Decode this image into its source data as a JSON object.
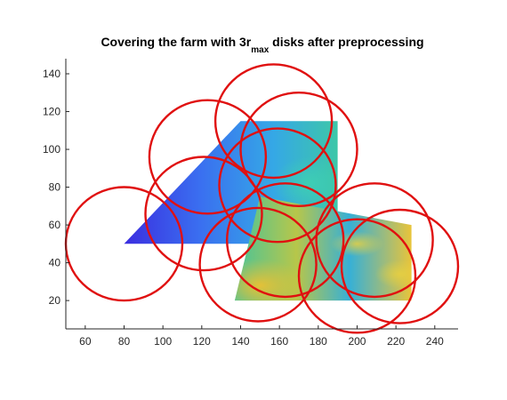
{
  "chart_data": {
    "type": "scatter",
    "title": {
      "prefix": "Covering the farm with 3r",
      "subscript": "max",
      "suffix": " disks after preprocessing"
    },
    "xlabel": "",
    "ylabel": "",
    "xlim": [
      50,
      252
    ],
    "ylim": [
      5,
      148
    ],
    "x_ticks": [
      60,
      80,
      100,
      120,
      140,
      160,
      180,
      200,
      220,
      240
    ],
    "y_ticks": [
      20,
      40,
      60,
      80,
      100,
      120,
      140
    ],
    "grid": false,
    "farm_regions": [
      {
        "name_hidden": true,
        "polygon": [
          [
            80,
            50
          ],
          [
            140,
            115
          ],
          [
            190,
            115
          ],
          [
            190,
            50
          ]
        ],
        "colormap": "cool"
      },
      {
        "name_hidden": true,
        "polygon": [
          [
            150,
            75
          ],
          [
            228,
            60
          ],
          [
            228,
            20
          ],
          [
            137,
            20
          ]
        ],
        "colormap": "warm"
      }
    ],
    "disks": [
      {
        "cx": 80,
        "cy": 50,
        "r": 30
      },
      {
        "cx": 123,
        "cy": 96,
        "r": 30
      },
      {
        "cx": 121,
        "cy": 66,
        "r": 30
      },
      {
        "cx": 157,
        "cy": 115,
        "r": 30
      },
      {
        "cx": 170,
        "cy": 100,
        "r": 30
      },
      {
        "cx": 159,
        "cy": 81,
        "r": 30
      },
      {
        "cx": 163,
        "cy": 52,
        "r": 30
      },
      {
        "cx": 149,
        "cy": 39,
        "r": 30
      },
      {
        "cx": 200,
        "cy": 33,
        "r": 30
      },
      {
        "cx": 209,
        "cy": 52,
        "r": 30
      },
      {
        "cx": 222,
        "cy": 38,
        "r": 30
      }
    ],
    "colors": {
      "disk": "#e01010",
      "cool": [
        "#3b2ee0",
        "#3a6ef0",
        "#35a8e6",
        "#3dc7a8"
      ],
      "warm": [
        "#48c49a",
        "#6dca6c",
        "#b7c64a",
        "#e9c43a"
      ]
    }
  }
}
